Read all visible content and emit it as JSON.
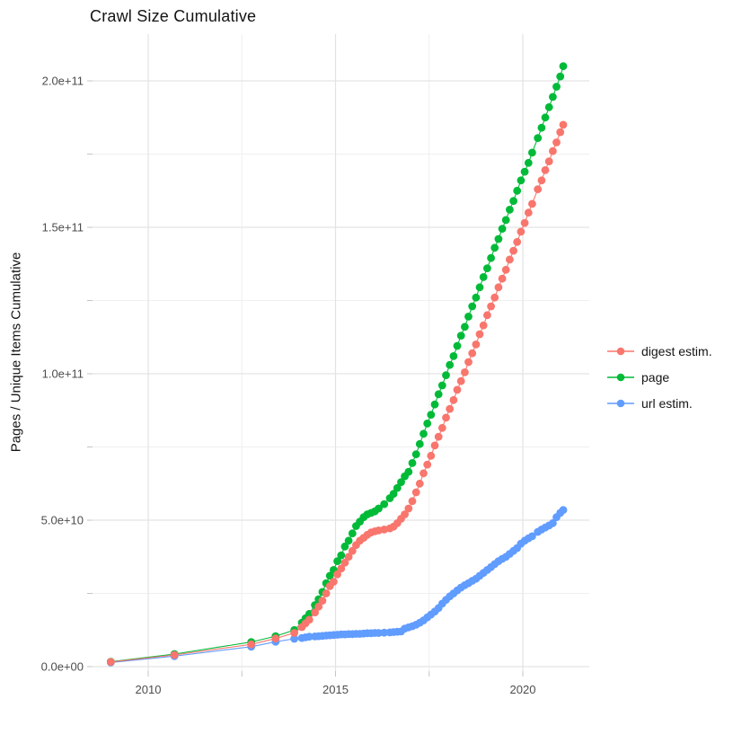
{
  "title": "Crawl Size Cumulative",
  "ylabel": "Pages / Unique Items Cumulative",
  "legend": {
    "position": "right",
    "items": [
      {
        "label": "digest estim.",
        "color": "#F8766D"
      },
      {
        "label": "page",
        "color": "#00BA38"
      },
      {
        "label": "url estim.",
        "color": "#619CFF"
      }
    ]
  },
  "chart_data": {
    "type": "scatter",
    "title": "Crawl Size Cumulative",
    "xlabel": "",
    "ylabel": "Pages / Unique Items Cumulative",
    "legend_position": "right",
    "grid": true,
    "x_unit": "year",
    "xlim": [
      2008.4,
      2021.7
    ],
    "ylim": [
      -1500000000.0,
      216000000000.0
    ],
    "x_ticks": {
      "values": [
        2010,
        2015,
        2020
      ],
      "labels": [
        "2010",
        "2015",
        "2020"
      ]
    },
    "x_minor_ticks": [
      2012.5,
      2017.5
    ],
    "y_ticks": {
      "values": [
        0,
        50000000000.0,
        100000000000.0,
        150000000000.0,
        200000000000.0
      ],
      "labels": [
        "0.0e+00",
        "5.0e+10",
        "1.0e+11",
        "1.5e+11",
        "2.0e+11"
      ]
    },
    "y_minor_ticks": [
      25000000000.0,
      75000000000.0,
      125000000000.0,
      175000000000.0
    ],
    "value_scale": 1000000000.0,
    "value_scale_note": "series values are in billions (multiply by 1e9 for axis units)",
    "x": [
      2009.0,
      2010.7,
      2012.75,
      2013.4,
      2013.9,
      2014.1,
      2014.2,
      2014.3,
      2014.45,
      2014.55,
      2014.65,
      2014.75,
      2014.85,
      2014.95,
      2015.05,
      2015.15,
      2015.25,
      2015.35,
      2015.45,
      2015.55,
      2015.65,
      2015.75,
      2015.85,
      2015.95,
      2016.05,
      2016.15,
      2016.3,
      2016.45,
      2016.55,
      2016.65,
      2016.75,
      2016.85,
      2016.95,
      2017.05,
      2017.15,
      2017.25,
      2017.35,
      2017.45,
      2017.55,
      2017.65,
      2017.75,
      2017.85,
      2017.95,
      2018.05,
      2018.15,
      2018.25,
      2018.35,
      2018.45,
      2018.55,
      2018.65,
      2018.75,
      2018.85,
      2018.95,
      2019.05,
      2019.15,
      2019.25,
      2019.35,
      2019.45,
      2019.55,
      2019.65,
      2019.75,
      2019.85,
      2019.95,
      2020.05,
      2020.15,
      2020.25,
      2020.4,
      2020.5,
      2020.6,
      2020.7,
      2020.8,
      2020.9,
      2021.0,
      2021.08
    ],
    "series": [
      {
        "name": "digest estim.",
        "color": "#F8766D",
        "values_e9": [
          1.6,
          4.0,
          7.6,
          9.6,
          11.5,
          13.5,
          14.8,
          16.0,
          18.5,
          20.5,
          22.5,
          25.0,
          27.5,
          29.0,
          31.5,
          33.5,
          35.5,
          37.5,
          39.5,
          41.5,
          43.0,
          44.0,
          45.0,
          45.8,
          46.2,
          46.5,
          46.8,
          47.2,
          47.8,
          49.0,
          50.5,
          52.0,
          54.0,
          56.5,
          59.5,
          62.5,
          66,
          69,
          72,
          75.5,
          78.5,
          81.5,
          85,
          88,
          91,
          94.5,
          97.5,
          100.5,
          104,
          107,
          110,
          113.5,
          116.5,
          120,
          123,
          126,
          129.5,
          132.5,
          135.5,
          139,
          142,
          145,
          148.5,
          151.5,
          155,
          158,
          163,
          166,
          169.5,
          172.5,
          176,
          179,
          182.5,
          185
        ]
      },
      {
        "name": "page",
        "color": "#00BA38",
        "values_e9": [
          1.7,
          4.3,
          8.4,
          10.4,
          12.5,
          15.0,
          16.5,
          18.0,
          21.0,
          23.0,
          25.5,
          28.5,
          31.0,
          33.0,
          36.0,
          38.0,
          41.0,
          43.0,
          45.5,
          48.0,
          49.5,
          51.0,
          52.0,
          52.5,
          53.0,
          54.0,
          55.5,
          57.5,
          59.0,
          61.0,
          63.0,
          65.0,
          66.5,
          69.5,
          72.5,
          76,
          79.5,
          83,
          86,
          89.5,
          93,
          96,
          99.5,
          103,
          106,
          109.5,
          113,
          116,
          119.5,
          123,
          126,
          129.5,
          133,
          136,
          139.5,
          143,
          146,
          149.5,
          152.5,
          156,
          159,
          162.5,
          166,
          169,
          172,
          175.5,
          180.5,
          184,
          187.5,
          191,
          194.5,
          198,
          201.5,
          205
        ]
      },
      {
        "name": "url estim.",
        "color": "#619CFF",
        "values_e9": [
          1.4,
          3.6,
          6.8,
          8.5,
          9.5,
          9.8,
          10.0,
          10.2,
          10.3,
          10.4,
          10.5,
          10.6,
          10.7,
          10.8,
          10.9,
          11.0,
          11.0,
          11.1,
          11.1,
          11.2,
          11.2,
          11.3,
          11.4,
          11.4,
          11.5,
          11.5,
          11.6,
          11.7,
          11.8,
          11.9,
          12.0,
          13.0,
          13.4,
          13.8,
          14.3,
          15.0,
          15.8,
          16.8,
          17.8,
          18.8,
          20.0,
          21.5,
          22.8,
          24.0,
          25.0,
          26.0,
          27.0,
          27.8,
          28.5,
          29.3,
          30.0,
          31.0,
          32.0,
          33.0,
          34.0,
          35.0,
          36.0,
          36.8,
          37.5,
          38.5,
          39.5,
          40.5,
          42.0,
          43.0,
          43.8,
          44.5,
          46.0,
          46.8,
          47.5,
          48.2,
          49.0,
          51.0,
          52.5,
          53.5
        ]
      }
    ]
  }
}
